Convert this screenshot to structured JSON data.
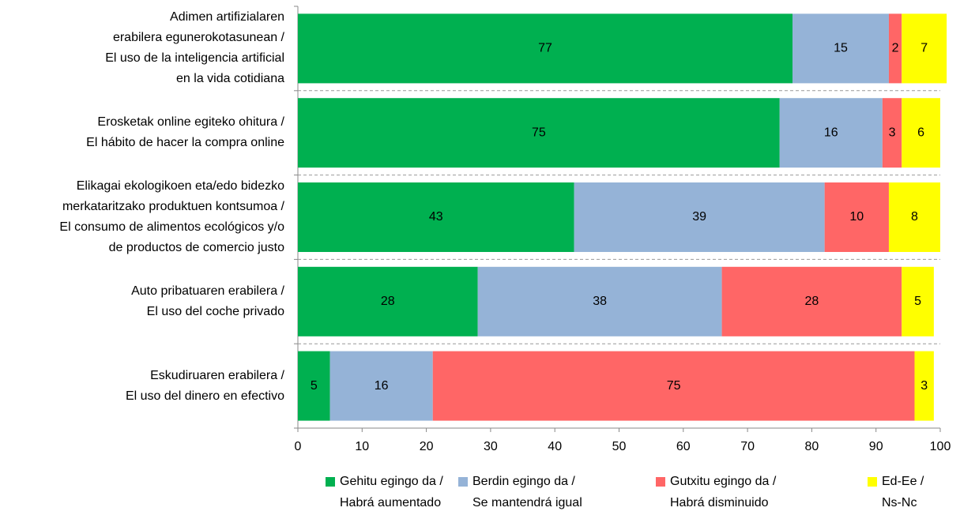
{
  "chart_data": {
    "type": "stacked_bar_horizontal",
    "categories": [
      "Adimen artifizialaren\nerabilera egunerokotasunean /\nEl uso de la inteligencia artificial\nen la vida cotidiana",
      "Erosketak online egiteko ohitura /\nEl hábito de hacer la compra online",
      "Elikagai ekologikoen eta/edo bidezko\nmerkataritzako produktuen kontsumoa  /\nEl consumo de alimentos ecológicos y/o\nde productos de comercio justo",
      "Auto pribatuaren erabilera  /\nEl uso del coche privado",
      "Eskudiruaren erabilera  /\nEl uso del dinero en efectivo"
    ],
    "series": [
      {
        "name": "Gehitu egingo da /\nHabrá aumentado",
        "color": "#00b050",
        "values": [
          77,
          75,
          43,
          28,
          5
        ]
      },
      {
        "name": "Berdin egingo da /\nSe mantendrá igual",
        "color": "#95b3d7",
        "values": [
          15,
          16,
          39,
          38,
          16
        ]
      },
      {
        "name": "Gutxitu egingo da /\nHabrá disminuido",
        "color": "#ff6666",
        "values": [
          2,
          3,
          10,
          28,
          75
        ]
      },
      {
        "name": "Ed-Ee /\nNs-Nc",
        "color": "#ffff00",
        "values": [
          7,
          6,
          8,
          5,
          3
        ]
      }
    ],
    "xlim": [
      0,
      100
    ],
    "xticks": [
      0,
      10,
      20,
      30,
      40,
      50,
      60,
      70,
      80,
      90,
      100
    ]
  }
}
